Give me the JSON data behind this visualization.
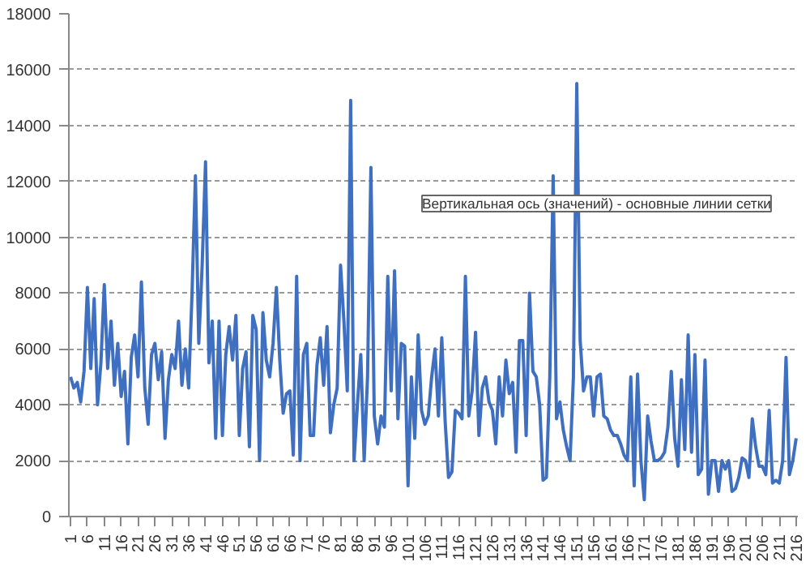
{
  "chart_data": {
    "type": "line",
    "categories": [
      "1",
      null,
      null,
      null,
      null,
      "6",
      null,
      null,
      null,
      null,
      "11",
      null,
      null,
      null,
      null,
      "16",
      null,
      null,
      null,
      null,
      "21",
      null,
      null,
      null,
      null,
      "26",
      null,
      null,
      null,
      null,
      "31",
      null,
      null,
      null,
      null,
      "36",
      null,
      null,
      null,
      null,
      "41",
      null,
      null,
      null,
      null,
      "46",
      null,
      null,
      null,
      null,
      "51",
      null,
      null,
      null,
      null,
      "56",
      null,
      null,
      null,
      null,
      "61",
      null,
      null,
      null,
      null,
      "66",
      null,
      null,
      null,
      null,
      "71",
      null,
      null,
      null,
      null,
      "76",
      null,
      null,
      null,
      null,
      "81",
      null,
      null,
      null,
      null,
      "86",
      null,
      null,
      null,
      null,
      "91",
      null,
      null,
      null,
      null,
      "96",
      null,
      null,
      null,
      null,
      "101",
      null,
      null,
      null,
      null,
      "106",
      null,
      null,
      null,
      null,
      "111",
      null,
      null,
      null,
      null,
      "116",
      null,
      null,
      null,
      null,
      "121",
      null,
      null,
      null,
      null,
      "126",
      null,
      null,
      null,
      null,
      "131",
      null,
      null,
      null,
      null,
      "136",
      null,
      null,
      null,
      null,
      "141",
      null,
      null,
      null,
      null,
      "146",
      null,
      null,
      null,
      null,
      "151",
      null,
      null,
      null,
      null,
      "156",
      null,
      null,
      null,
      null,
      "161",
      null,
      null,
      null,
      null,
      "166",
      null,
      null,
      null,
      null,
      "171",
      null,
      null,
      null,
      null,
      "176",
      null,
      null,
      null,
      null,
      "181",
      null,
      null,
      null,
      null,
      "186",
      null,
      null,
      null,
      null,
      "191",
      null,
      null,
      null,
      null,
      "196",
      null,
      null,
      null,
      null,
      "201",
      null,
      null,
      null,
      null,
      "206",
      null,
      null,
      null,
      null,
      "211",
      null,
      null,
      null,
      null,
      "216"
    ],
    "series": [
      {
        "color": "#3f6fc0",
        "values": [
          5000,
          4600,
          4800,
          4100,
          5200,
          8200,
          5300,
          7800,
          4000,
          5500,
          8300,
          5300,
          7000,
          4700,
          6200,
          4300,
          5200,
          2600,
          5700,
          6500,
          5000,
          8400,
          4600,
          3300,
          5800,
          6200,
          4900,
          5900,
          2800,
          4900,
          5800,
          5300,
          7000,
          4700,
          6000,
          4600,
          8000,
          12200,
          6200,
          9000,
          12700,
          5500,
          7000,
          2800,
          7000,
          2900,
          5800,
          6800,
          5600,
          7200,
          2900,
          5300,
          5900,
          2500,
          7200,
          6700,
          2000,
          7300,
          5600,
          5000,
          6200,
          8200,
          5600,
          3700,
          4400,
          4500,
          2200,
          8600,
          2000,
          5800,
          6200,
          2900,
          2900,
          5400,
          6400,
          4700,
          6800,
          3000,
          4000,
          4600,
          9000,
          7000,
          4500,
          14900,
          2000,
          4000,
          5800,
          2000,
          5000,
          12500,
          3600,
          2600,
          3600,
          3200,
          8600,
          4500,
          8800,
          3500,
          6200,
          6100,
          1100,
          5000,
          2800,
          6500,
          3800,
          3300,
          3600,
          5000,
          6000,
          3600,
          6400,
          3400,
          1400,
          1600,
          3800,
          3700,
          3500,
          8600,
          3600,
          4500,
          6600,
          2900,
          4600,
          5000,
          4100,
          3800,
          2600,
          5000,
          3600,
          5600,
          4400,
          4800,
          2300,
          6300,
          6300,
          2900,
          8000,
          5200,
          5000,
          4000,
          1300,
          1400,
          5000,
          12200,
          3500,
          4100,
          3100,
          2500,
          2000,
          5000,
          15500,
          6300,
          4500,
          5000,
          5000,
          3600,
          5000,
          5100,
          3600,
          3500,
          3100,
          2900,
          2900,
          2600,
          2200,
          2000,
          5000,
          1100,
          5100,
          2000,
          600,
          3600,
          2700,
          2000,
          2000,
          2100,
          2300,
          3200,
          5200,
          2800,
          1800,
          4900,
          2400,
          6500,
          2300,
          5800,
          1500,
          1700,
          5600,
          800,
          2000,
          2000,
          900,
          2000,
          1700,
          2000,
          900,
          1000,
          1400,
          2100,
          2000,
          1400,
          3500,
          2500,
          1800,
          1800,
          1500,
          3800,
          1200,
          1300,
          1200,
          2000,
          5700,
          1500,
          2000,
          2800
        ]
      }
    ],
    "ylim": [
      0,
      18000
    ],
    "yticks": [
      0,
      2000,
      4000,
      6000,
      8000,
      10000,
      12000,
      14000,
      16000,
      18000
    ],
    "grid": "y",
    "marker": "none",
    "line_style": "solid",
    "annotations": [
      "Вертикальная ось (значений) - основные линии сетки"
    ]
  }
}
